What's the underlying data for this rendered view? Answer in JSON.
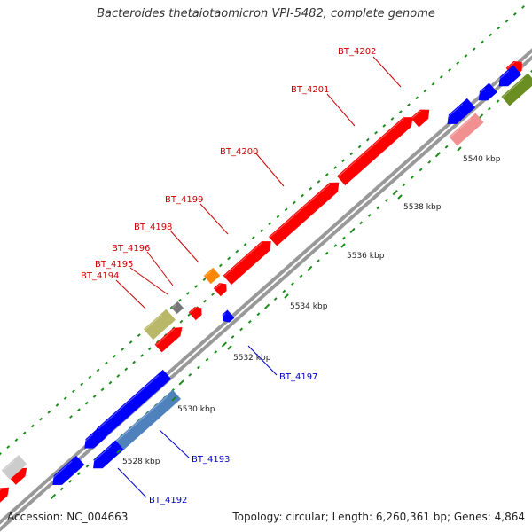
{
  "title": "Bacteroides thetaiotaomicron VPI-5482, complete genome",
  "footer": {
    "accession": "Accession: NC_004663",
    "stats": "Topology: circular; Length: 6,260,361 bp; Genes: 4,864"
  },
  "colors": {
    "forward_gene": "#ff0000",
    "reverse_gene": "#0000ff",
    "backbone": "#888888",
    "ticks": "#1a8c1a",
    "forward_label": "#cc0000",
    "reverse_label": "#0000cc"
  },
  "scale_labels": [
    "5528 kbp",
    "5530 kbp",
    "5532 kbp",
    "5534 kbp",
    "5536 kbp",
    "5538 kbp",
    "5540 kbp"
  ],
  "forward_labels": [
    "BT_4202",
    "BT_4201",
    "BT_4200",
    "BT_4199",
    "BT_4198",
    "BT_4196",
    "BT_4195",
    "BT_4194"
  ],
  "reverse_labels": [
    "BT_4197",
    "BT_4193",
    "BT_4192"
  ]
}
